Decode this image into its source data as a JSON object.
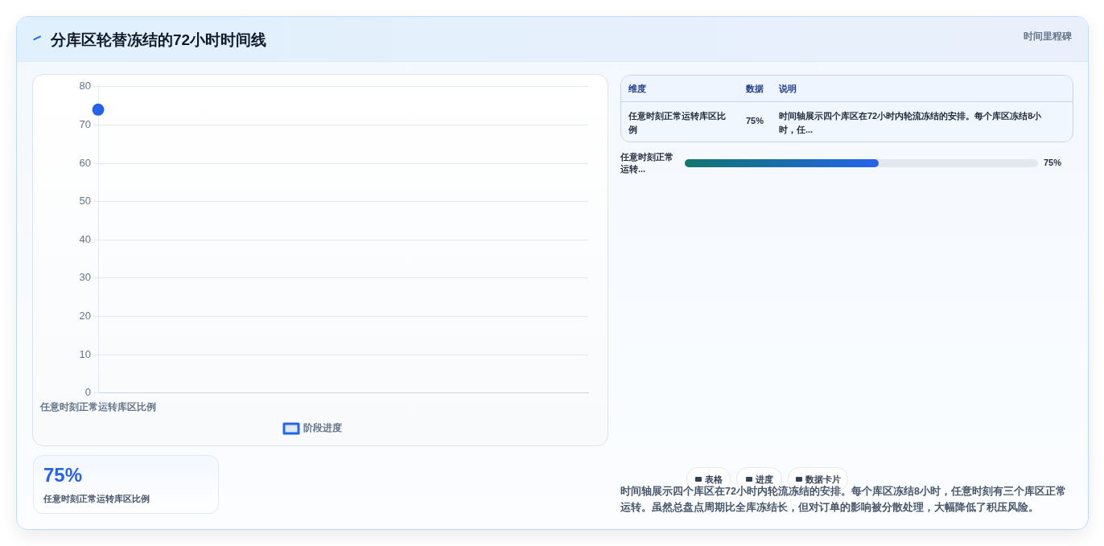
{
  "chart_data": [
    {
      "type": "line",
      "categories": [
        "任意时刻正常运转库区比例"
      ],
      "series": [
        {
          "name": "阶段进度",
          "color": "#2563eb",
          "values": [
            74
          ]
        }
      ],
      "ylim": [
        0,
        80
      ],
      "yticks": [
        0,
        10,
        20,
        30,
        40,
        50,
        60,
        70,
        80
      ],
      "grid": "y",
      "legend": "bottom",
      "marker": "circle"
    },
    {
      "type": "other",
      "title": "分库区轮替冻结的72小时时间线",
      "subtitle": "时间里程碑",
      "annotations": [
        "维度",
        "数据",
        "说明",
        "任意时刻正常运转库区比例",
        "75%",
        "时间轴展示四个库区在72小时内轮流冻结的安排。每个库区冻结8小时，任...",
        "任意时刻正常运转...",
        "75%",
        "75%",
        "任意时刻正常运转库区比例",
        "表格",
        "进度",
        "数据卡片",
        "时间轴展示四个库区在72小时内轮流冻结的安排。每个库区冻结8小时，任意时刻有三个库区正常运转。虽然总盘点周期比全库冻结长，但对订单的影响被分散处理，大幅降低了积压风险。"
      ]
    }
  ]
}
